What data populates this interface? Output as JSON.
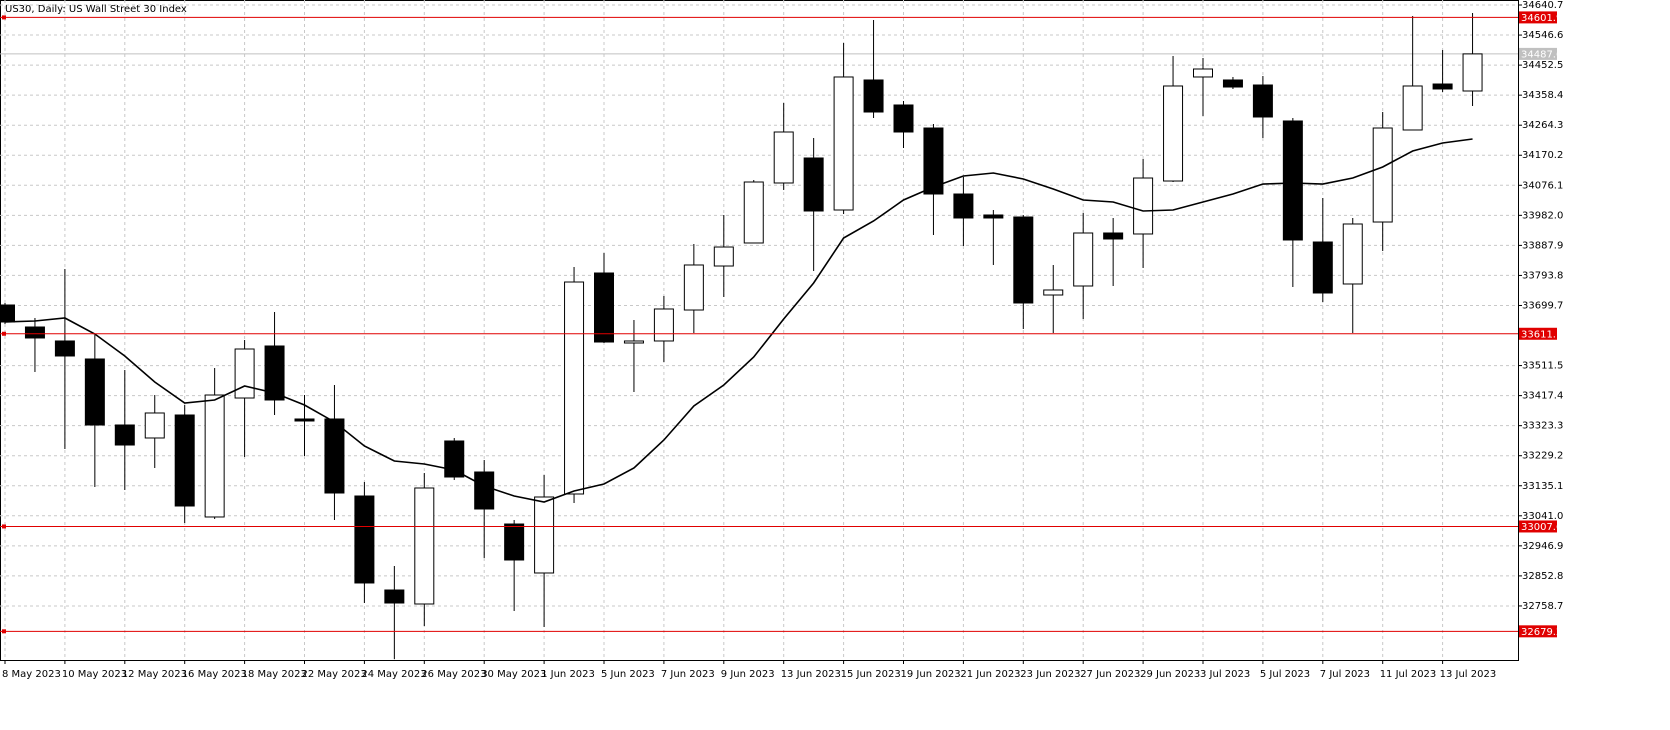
{
  "chart_data": {
    "type": "candlestick",
    "title": "US30, Daily:  US Wall Street 30 Index",
    "categories": [
      "8 May 2023",
      null,
      "10 May 2023",
      null,
      "12 May 2023",
      null,
      "16 May 2023",
      null,
      "18 May 2023",
      null,
      "22 May 2023",
      null,
      "24 May 2023",
      null,
      "26 May 2023",
      null,
      "30 May 2023",
      null,
      "1 Jun 2023",
      null,
      "5 Jun 2023",
      null,
      "7 Jun 2023",
      null,
      "9 Jun 2023",
      null,
      "13 Jun 2023",
      null,
      "15 Jun 2023",
      null,
      "19 Jun 2023",
      null,
      "21 Jun 2023",
      null,
      "23 Jun 2023",
      null,
      "27 Jun 2023",
      null,
      "29 Jun 2023",
      null,
      "3 Jul 2023",
      null,
      "5 Jul 2023",
      null,
      "7 Jul 2023",
      null,
      "11 Jul 2023",
      null,
      "13 Jul 2023",
      null
    ],
    "open": [
      33701.2,
      33632.3,
      33588.5,
      33532.1,
      33325.4,
      33284.7,
      33356.7,
      33037.3,
      33409.9,
      33572.8,
      33344.2,
      33344.2,
      33103.0,
      32808.6,
      32764.8,
      33275.3,
      33178.2,
      33015.3,
      32861.9,
      33109.3,
      33801.4,
      33582.2,
      33588.5,
      33685.5,
      33823.3,
      33895.4,
      34083.3,
      34161.6,
      33998.7,
      34405.9,
      34327.6,
      34255.5,
      34048.8,
      33983.1,
      33976.8,
      33732.5,
      33760.7,
      33926.7,
      33923.6,
      34089.5,
      34415.3,
      34405.9,
      34390.2,
      34277.5,
      33898.5,
      33767.0,
      33961.1,
      34249.3,
      34393.3,
      34371.4
    ],
    "high": [
      33707.5,
      33660.5,
      33813.9,
      33607.2,
      33497.6,
      33419.3,
      33388.0,
      33503.9,
      33591.6,
      33679.3,
      33419.3,
      33450.7,
      33146.9,
      32883.8,
      33175.1,
      33284.7,
      33215.8,
      33027.9,
      33168.8,
      33820.2,
      33864.1,
      33654.2,
      33729.4,
      33892.2,
      33983.1,
      34092.7,
      34333.8,
      34224.2,
      34521.7,
      34593.8,
      34340.1,
      34268.1,
      34102.1,
      33998.7,
      33983.1,
      33826.5,
      33989.3,
      33973.7,
      34158.4,
      34481.0,
      34474.8,
      34415.3,
      34418.4,
      34286.8,
      34036.3,
      33973.7,
      34305.6,
      34606.3,
      34499.8,
      34615.7
    ],
    "low": [
      33641.7,
      33491.4,
      33250.2,
      33131.2,
      33121.8,
      33190.7,
      33018.5,
      33031.0,
      33225.2,
      33356.7,
      33228.3,
      33027.9,
      32767.9,
      32592.0,
      32695.9,
      33153.1,
      32908.9,
      32742.9,
      32692.8,
      33081.1,
      33582.2,
      33428.7,
      33522.7,
      33613.5,
      33726.3,
      33895.4,
      34061.4,
      33807.7,
      33986.2,
      34286.8,
      34192.9,
      33920.4,
      33886.0,
      33826.5,
      33626.0,
      33613.5,
      33657.4,
      33760.7,
      33817.1,
      34086.4,
      34293.1,
      34377.7,
      34224.2,
      33757.6,
      33710.6,
      33613.5,
      33870.3,
      34249.3,
      34368.3,
      34324.4
    ],
    "close": [
      33648.0,
      33597.9,
      33541.5,
      33325.4,
      33262.7,
      33363.0,
      33071.7,
      33419.3,
      33563.4,
      33403.7,
      33337.9,
      33112.4,
      32830.6,
      32767.9,
      33128.1,
      33162.5,
      33062.3,
      32902.6,
      33099.9,
      33773.2,
      33585.3,
      33588.5,
      33688.7,
      33826.5,
      33882.8,
      34086.4,
      34243.0,
      33995.6,
      34415.3,
      34305.6,
      34243.0,
      34048.8,
      33973.7,
      33973.7,
      33707.5,
      33748.2,
      33926.7,
      33907.9,
      34098.9,
      34387.1,
      34440.3,
      34383.9,
      34290.0,
      33904.8,
      33738.8,
      33954.9,
      34255.5,
      34387.1,
      34377.7,
      34487.6
    ],
    "ma": {
      "color": "#000000",
      "values": [
        33648.0,
        33651.1,
        33660.5,
        33610.4,
        33541.5,
        33460.1,
        33394.3,
        33403.7,
        33447.5,
        33425.6,
        33388.0,
        33334.8,
        33259.6,
        33212.6,
        33203.2,
        33184.5,
        33134.3,
        33103.0,
        33084.2,
        33118.7,
        33140.6,
        33190.7,
        33278.4,
        33384.9,
        33450.7,
        33538.3,
        33657.4,
        33770.1,
        33911.0,
        33964.3,
        34030.0,
        34070.8,
        34105.2,
        34114.6,
        34095.8,
        34064.5,
        34030.0,
        34023.8,
        33995.6,
        33998.7,
        34023.8,
        34048.8,
        34080.1,
        34083.3,
        34080.1,
        34098.9,
        34133.4,
        34183.5,
        34208.6,
        34221.1
      ]
    },
    "up_color": "#ffffff",
    "down_color": "#000000",
    "levels": [
      34601.9,
      33611.1,
      33007.6,
      32679.2
    ],
    "level_color": "#e00000",
    "price_line": 34487.6,
    "price_line_color": "#c0c0c0",
    "ylim": [
      32589.4,
      34656.4
    ],
    "yticks": [
      34640.7,
      34546.6,
      34452.5,
      34358.4,
      34264.3,
      34170.2,
      34076.1,
      {
        "value": 33982,
        "label": "33982.0"
      },
      33887.9,
      33793.8,
      33699.7,
      33511.5,
      33417.4,
      33323.3,
      33229.2,
      33135.1,
      {
        "value": 33041,
        "label": "33041.0"
      },
      32946.9,
      32852.8,
      32758.7
    ],
    "grid": true
  }
}
